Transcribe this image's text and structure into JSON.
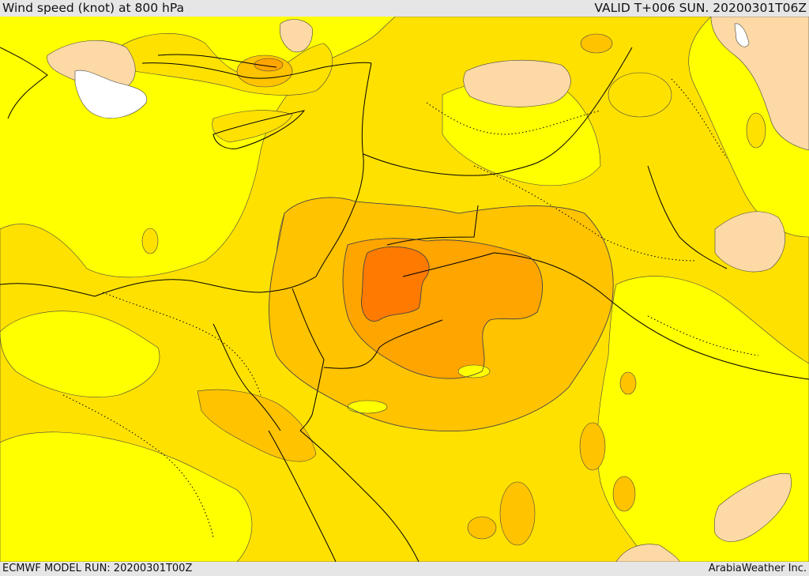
{
  "header": {
    "title": "Wind speed (knot) at 800 hPa",
    "valid": "VALID T+006 SUN. 20200301T06Z"
  },
  "footer": {
    "model_run": "ECMWF MODEL RUN: 20200301T00Z",
    "credit": "ArabiaWeather Inc."
  },
  "map": {
    "fill_colors": {
      "lowest": "#ffffff",
      "low": "#fcd9a5",
      "base": "#ffff00",
      "mid": "#ffe100",
      "higher": "#ffc300",
      "high": "#ffa500",
      "highest": "#ff7a00"
    },
    "contour_color": "#444444",
    "coastline_color": "#000000"
  }
}
